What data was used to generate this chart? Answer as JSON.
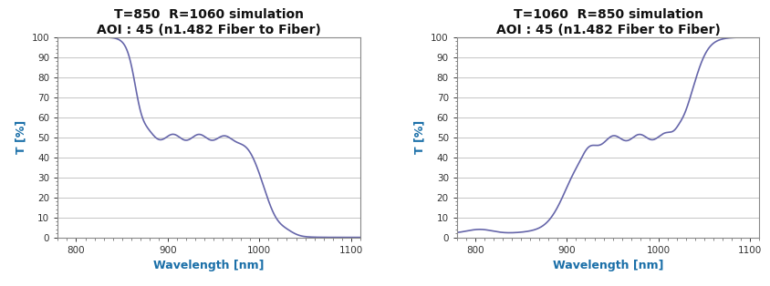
{
  "title1": "T=850  R=1060 simulation\nAOI : 45 (n1.482 Fiber to Fiber)",
  "title2": "T=1060  R=850 simulation\nAOI : 45 (n1.482 Fiber to Fiber)",
  "xlabel": "Wavelength [nm]",
  "ylabel": "T [%]",
  "xlim": [
    780,
    1110
  ],
  "ylim": [
    0,
    100
  ],
  "xticks": [
    800,
    900,
    1000,
    1100
  ],
  "yticks": [
    0,
    10,
    20,
    30,
    40,
    50,
    60,
    70,
    80,
    90,
    100
  ],
  "line_color": "#6666aa",
  "line_width": 1.2,
  "title_fontsize": 10,
  "title_color": "#111111",
  "axis_label_color": "#1a6fa8",
  "tick_color": "#333333",
  "background_color": "#ffffff",
  "grid_color": "#bbbbbb",
  "border_color": "#888888"
}
